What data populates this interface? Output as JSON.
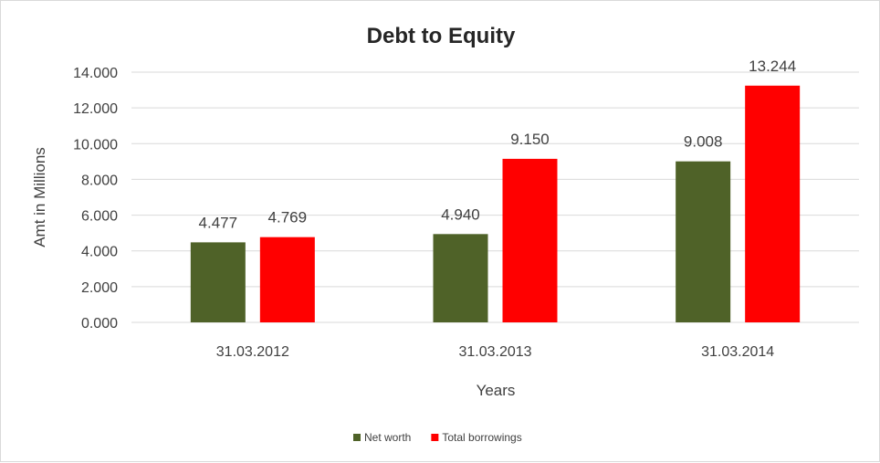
{
  "chart_data": {
    "type": "bar",
    "title": "Debt to Equity",
    "xlabel": "Years",
    "ylabel": "Amt in Millions",
    "categories": [
      "31.03.2012",
      "31.03.2013",
      "31.03.2014"
    ],
    "series": [
      {
        "name": "Net worth",
        "values": [
          4.477,
          4.94,
          9.008
        ],
        "value_labels": [
          "4.477",
          "4.940",
          "9.008"
        ],
        "color": "#4f6228"
      },
      {
        "name": "Total borrowings",
        "values": [
          4.769,
          9.15,
          13.244
        ],
        "value_labels": [
          "4.769",
          "9.150",
          "13.244"
        ],
        "color": "#ff0000"
      }
    ],
    "ylim": [
      0,
      14
    ],
    "yticks": [
      "0.000",
      "2.000",
      "4.000",
      "6.000",
      "8.000",
      "10.000",
      "12.000",
      "14.000"
    ],
    "grid": true,
    "legend": "bottom"
  }
}
